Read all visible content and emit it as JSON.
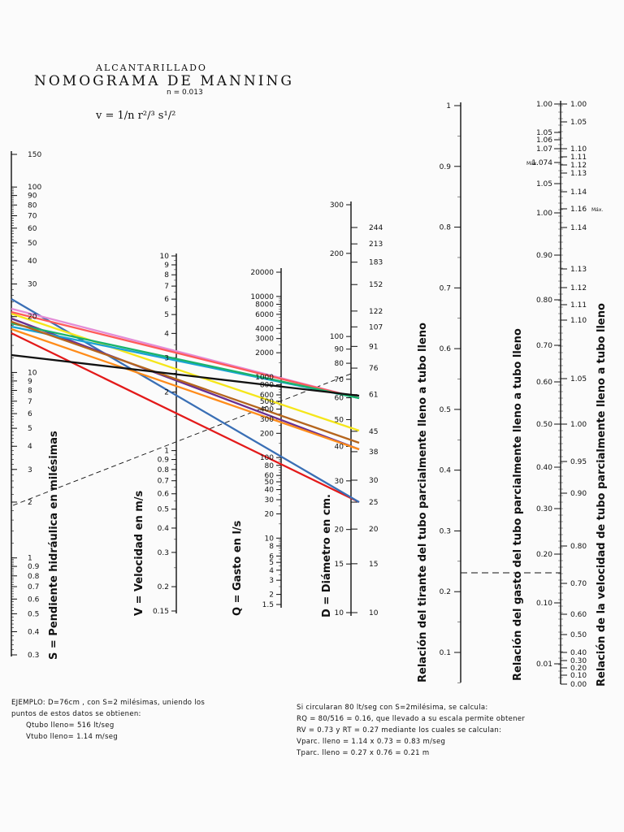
{
  "header": {
    "subtitle": "ALCANTARILLADO",
    "title": "NOMOGRAMA DE MANNING",
    "n_value": "n = 0.013",
    "formula": "v = 1/n r²/³ s¹/²"
  },
  "axes": {
    "S": {
      "label": "S = Pendiente hidráulica en milésimas",
      "ticks": [
        "150",
        "100",
        "90",
        "80",
        "70",
        "60",
        "50",
        "40",
        "30",
        "20",
        "10",
        "9",
        "8",
        "7",
        "6",
        "5",
        "4",
        "3",
        "2",
        "1",
        "0.9",
        "0.8",
        "0.7",
        "0.6",
        "0.5",
        "0.4",
        "0.3"
      ]
    },
    "V": {
      "label": "V = Velocidad en m/s",
      "ticks": [
        "10",
        "9",
        "8",
        "7",
        "6",
        "5",
        "4",
        "3",
        "2",
        "1",
        "0.9",
        "0.8",
        "0.7",
        "0.6",
        "0.5",
        "0.4",
        "0.3",
        "0.2",
        "0.15"
      ]
    },
    "Q": {
      "label": "Q = Gasto en l/s",
      "ticks": [
        "20000",
        "10000",
        "8000",
        "6000",
        "4000",
        "3000",
        "2000",
        "1000",
        "800",
        "600",
        "500",
        "400",
        "300",
        "200",
        "100",
        "80",
        "60",
        "50",
        "40",
        "30",
        "20",
        "10",
        "8",
        "6",
        "5",
        "4",
        "3",
        "2",
        "1.5"
      ]
    },
    "D": {
      "label": "D = Diámetro en cm.",
      "left_ticks": [
        "300",
        "200",
        "100",
        "90",
        "80",
        "70",
        "60",
        "50",
        "40",
        "30",
        "20",
        "15",
        "10"
      ],
      "right_ticks": [
        "244",
        "213",
        "183",
        "152",
        "122",
        "107",
        "91",
        "76",
        "61",
        "45",
        "38",
        "30",
        "25",
        "20",
        "15",
        "10"
      ]
    },
    "T": {
      "label": "Relación del tirante del tubo parcialmente lleno a tubo lleno",
      "ticks": [
        "1",
        "0.9",
        "0.8",
        "0.7",
        "0.6",
        "0.5",
        "0.4",
        "0.3",
        "0.2",
        "0.1"
      ]
    },
    "G": {
      "label": "Relación del gasto del tubo parcialmente lleno a tubo lleno",
      "left_ticks": [
        "1.00",
        "1.05",
        "1.06",
        "1.07",
        "1.074",
        "1.05",
        "1.00",
        "0.90",
        "0.80",
        "0.70",
        "0.60",
        "0.50",
        "0.40",
        "0.30",
        "0.20",
        "0.10",
        "0.01"
      ],
      "max_marks": [
        "Máx.",
        "Máx."
      ]
    },
    "R": {
      "label": "Relación de la velocidad de tubo parcialmente lleno a tubo lleno",
      "right_ticks": [
        "1.00",
        "1.05",
        "1.10",
        "1.11",
        "1.12",
        "1.13",
        "1.14",
        "1.16",
        "1.14",
        "1.13",
        "1.12",
        "1.11",
        "1.10",
        "1.05",
        "1.00",
        "0.95",
        "0.90",
        "0.80",
        "0.70",
        "0.60",
        "0.50",
        "0.40",
        "0.30",
        "0.20",
        "0.10",
        "0.00"
      ]
    }
  },
  "example": {
    "line1": "EJEMPLO: D=76cm , con S=2 milésimas, uniendo los",
    "line2": "puntos de estos datos se obtienen:",
    "line3": "Qtubo lleno= 516 lt/seg",
    "line4": "Vtubo lleno= 1.14 m/seg"
  },
  "calc": {
    "line1": "Si circularan 80 lt/seg con S=2milésima, se calcula:",
    "line2": "RQ = 80/516 = 0.16, que llevado a su escala permite obtener",
    "line3": "RV = 0.73 y RT = 0.27 mediante los cuales se calculan:",
    "line4": "Vparc. lleno = 1.14 x 0.73 = 0.83 m/seg",
    "line5": "Tparc. lleno = 0.27 x 0.76 = 0.21 m"
  },
  "colors": {
    "ink": "#111111",
    "lines": [
      "#e31a1a",
      "#3a6fb5",
      "#6a2f8f",
      "#ff8c1a",
      "#f5e61a",
      "#e38cd6",
      "#ff5a5a",
      "#1aa3d6",
      "#1ab36b",
      "#b5651d",
      "#111111"
    ]
  }
}
